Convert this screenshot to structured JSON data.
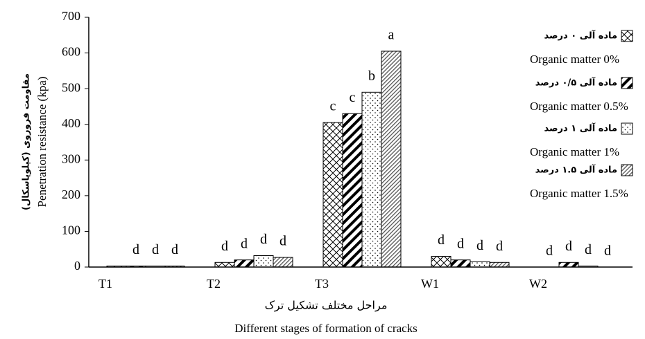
{
  "chart_data": {
    "type": "bar",
    "y_label": "Penetration resistance (kpa)",
    "y_label_fa": "مقاومت فروروی (کیلوپاسکال)",
    "x_label": "Different stages of formation of cracks",
    "x_label_fa": "مراحل مختلف تشکیل ترک",
    "categories": [
      "T1",
      "T2",
      "T3",
      "W1",
      "W2"
    ],
    "ylim": [
      0,
      700
    ],
    "yticks": [
      0,
      100,
      200,
      300,
      400,
      500,
      600,
      700
    ],
    "grid": false,
    "series": [
      {
        "name": "Organic matter 0%",
        "name_fa": "ماده آلی ۰ درصد",
        "color": "#000000",
        "pattern": "crosshatch",
        "values": [
          3,
          13,
          405,
          30,
          0
        ],
        "letters": [
          null,
          "d",
          "c",
          "d",
          "d"
        ]
      },
      {
        "name": "Organic matter 0.5%",
        "name_fa": "ماده آلی ۰/۵ درصد",
        "color": "#000000",
        "pattern": "thick-diagonal",
        "values": [
          3,
          20,
          430,
          20,
          13
        ],
        "letters": [
          "d",
          "d",
          "c",
          "d",
          "d"
        ]
      },
      {
        "name": "Organic matter 1%",
        "name_fa": "ماده آلی ۱ درصد",
        "color": "#000000",
        "pattern": "dots",
        "values": [
          3,
          32,
          490,
          15,
          3
        ],
        "letters": [
          "d",
          "d",
          "b",
          "d",
          "d"
        ]
      },
      {
        "name": "Organic matter 1.5%",
        "name_fa": "ماده آلی ۱.۵ درصد",
        "color": "#000000",
        "pattern": "thin-diagonal",
        "values": [
          3,
          27,
          605,
          13,
          0
        ],
        "letters": [
          "d",
          "d",
          "a",
          "d",
          "d"
        ]
      }
    ]
  }
}
